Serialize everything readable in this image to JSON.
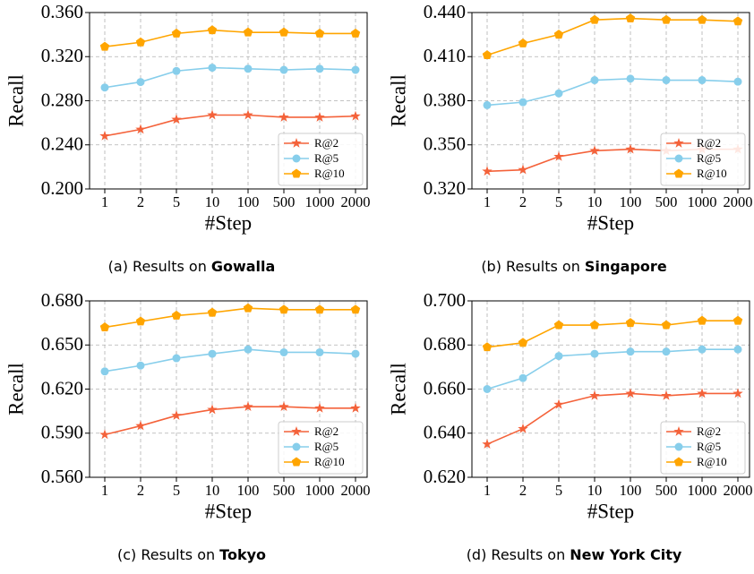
{
  "chart_data": [
    {
      "type": "line",
      "caption": "(a) Results on",
      "caption_emphasis": "Gowalla",
      "ylabel": "Recall",
      "xlabel": "#Step",
      "categories": [
        "1",
        "2",
        "5",
        "10",
        "100",
        "500",
        "1000",
        "2000"
      ],
      "ylim": [
        0.2,
        0.36
      ],
      "yticks": [
        {
          "value": 0.2,
          "label": "0.200"
        },
        {
          "value": 0.24,
          "label": "0.240"
        },
        {
          "value": 0.28,
          "label": "0.280"
        },
        {
          "value": 0.32,
          "label": "0.320"
        },
        {
          "value": 0.36,
          "label": "0.360"
        }
      ],
      "grid": true,
      "legend": "lower right",
      "series": [
        {
          "name": "R@2",
          "color": "#f4623a",
          "marker": "star",
          "values": [
            0.248,
            0.254,
            0.263,
            0.267,
            0.267,
            0.265,
            0.265,
            0.266
          ]
        },
        {
          "name": "R@5",
          "color": "#87ceeb",
          "marker": "circle",
          "values": [
            0.292,
            0.297,
            0.307,
            0.31,
            0.309,
            0.308,
            0.309,
            0.308
          ]
        },
        {
          "name": "R@10",
          "color": "#ffa500",
          "marker": "pentagon",
          "values": [
            0.329,
            0.333,
            0.341,
            0.344,
            0.342,
            0.342,
            0.341,
            0.341
          ]
        }
      ]
    },
    {
      "type": "line",
      "caption": "(b) Results on",
      "caption_emphasis": "Singapore",
      "ylabel": "Recall",
      "xlabel": "#Step",
      "categories": [
        "1",
        "2",
        "5",
        "10",
        "100",
        "500",
        "1000",
        "2000"
      ],
      "ylim": [
        0.32,
        0.44
      ],
      "yticks": [
        {
          "value": 0.32,
          "label": "0.320"
        },
        {
          "value": 0.35,
          "label": "0.350"
        },
        {
          "value": 0.38,
          "label": "0.380"
        },
        {
          "value": 0.41,
          "label": "0.410"
        },
        {
          "value": 0.44,
          "label": "0.440"
        }
      ],
      "grid": true,
      "legend": "lower right",
      "series": [
        {
          "name": "R@2",
          "color": "#f4623a",
          "marker": "star",
          "values": [
            0.332,
            0.333,
            0.342,
            0.346,
            0.347,
            0.346,
            0.347,
            0.347
          ]
        },
        {
          "name": "R@5",
          "color": "#87ceeb",
          "marker": "circle",
          "values": [
            0.377,
            0.379,
            0.385,
            0.394,
            0.395,
            0.394,
            0.394,
            0.393
          ]
        },
        {
          "name": "R@10",
          "color": "#ffa500",
          "marker": "pentagon",
          "values": [
            0.411,
            0.419,
            0.425,
            0.435,
            0.436,
            0.435,
            0.435,
            0.434
          ]
        }
      ]
    },
    {
      "type": "line",
      "caption": "(c) Results on",
      "caption_emphasis": "Tokyo",
      "ylabel": "Recall",
      "xlabel": "#Step",
      "categories": [
        "1",
        "2",
        "5",
        "10",
        "100",
        "500",
        "1000",
        "2000"
      ],
      "ylim": [
        0.56,
        0.68
      ],
      "yticks": [
        {
          "value": 0.56,
          "label": "0.560"
        },
        {
          "value": 0.59,
          "label": "0.590"
        },
        {
          "value": 0.62,
          "label": "0.620"
        },
        {
          "value": 0.65,
          "label": "0.650"
        },
        {
          "value": 0.68,
          "label": "0.680"
        }
      ],
      "grid": true,
      "legend": "lower right",
      "series": [
        {
          "name": "R@2",
          "color": "#f4623a",
          "marker": "star",
          "values": [
            0.589,
            0.595,
            0.602,
            0.606,
            0.608,
            0.608,
            0.607,
            0.607
          ]
        },
        {
          "name": "R@5",
          "color": "#87ceeb",
          "marker": "circle",
          "values": [
            0.632,
            0.636,
            0.641,
            0.644,
            0.647,
            0.645,
            0.645,
            0.644
          ]
        },
        {
          "name": "R@10",
          "color": "#ffa500",
          "marker": "pentagon",
          "values": [
            0.662,
            0.666,
            0.67,
            0.672,
            0.675,
            0.674,
            0.674,
            0.674
          ]
        }
      ]
    },
    {
      "type": "line",
      "caption": "(d) Results on",
      "caption_emphasis": "New York City",
      "ylabel": "Recall",
      "xlabel": "#Step",
      "categories": [
        "1",
        "2",
        "5",
        "10",
        "100",
        "500",
        "1000",
        "2000"
      ],
      "ylim": [
        0.62,
        0.7
      ],
      "yticks": [
        {
          "value": 0.62,
          "label": "0.620"
        },
        {
          "value": 0.64,
          "label": "0.640"
        },
        {
          "value": 0.66,
          "label": "0.660"
        },
        {
          "value": 0.68,
          "label": "0.680"
        },
        {
          "value": 0.7,
          "label": "0.700"
        }
      ],
      "grid": true,
      "legend": "lower right",
      "series": [
        {
          "name": "R@2",
          "color": "#f4623a",
          "marker": "star",
          "values": [
            0.635,
            0.642,
            0.653,
            0.657,
            0.658,
            0.657,
            0.658,
            0.658
          ]
        },
        {
          "name": "R@5",
          "color": "#87ceeb",
          "marker": "circle",
          "values": [
            0.66,
            0.665,
            0.675,
            0.676,
            0.677,
            0.677,
            0.678,
            0.678
          ]
        },
        {
          "name": "R@10",
          "color": "#ffa500",
          "marker": "pentagon",
          "values": [
            0.679,
            0.681,
            0.689,
            0.689,
            0.69,
            0.689,
            0.691,
            0.691
          ]
        }
      ]
    }
  ]
}
